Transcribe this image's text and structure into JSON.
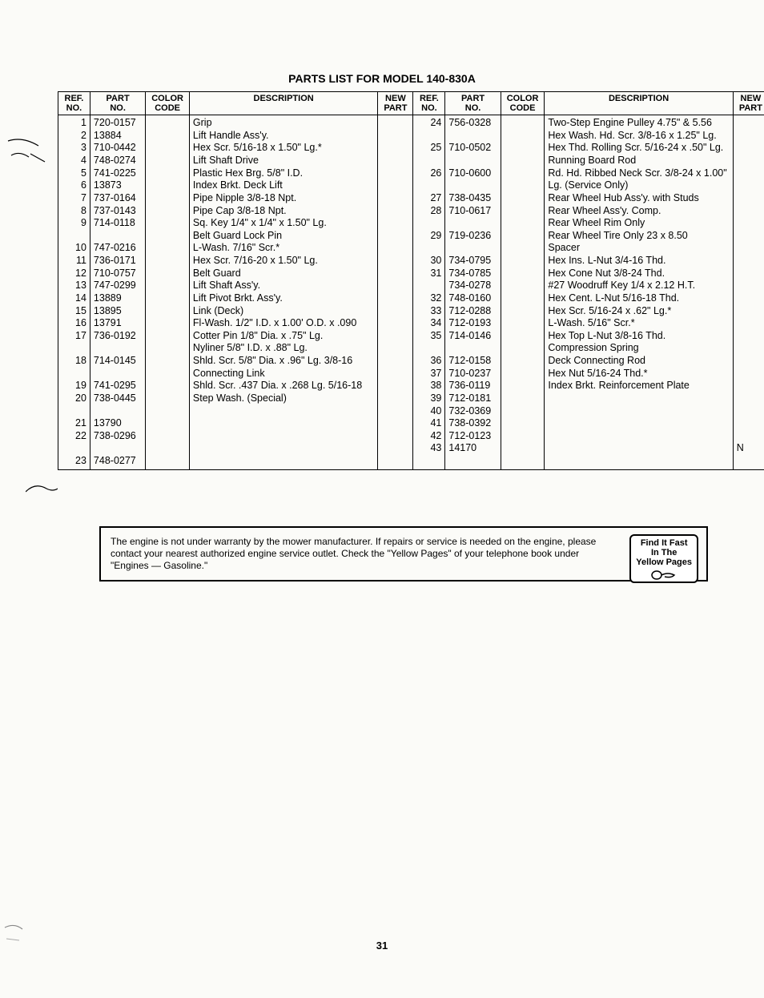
{
  "title": "PARTS LIST FOR MODEL 140-830A",
  "headers": {
    "ref": "REF.\nNO.",
    "part": "PART\nNO.",
    "color": "COLOR\nCODE",
    "desc": "DESCRIPTION",
    "newp": "NEW\nPART"
  },
  "left_rows": [
    {
      "ref": "1",
      "part": "720-0157",
      "desc": "Grip"
    },
    {
      "ref": "2",
      "part": "13884",
      "desc": "Lift Handle Ass'y."
    },
    {
      "ref": "3",
      "part": "710-0442",
      "desc": "Hex Scr. 5/16-18 x 1.50\" Lg.*"
    },
    {
      "ref": "4",
      "part": "748-0274",
      "desc": "Lift Shaft Drive"
    },
    {
      "ref": "5",
      "part": "741-0225",
      "desc": "Plastic Hex Brg. 5/8\" I.D."
    },
    {
      "ref": "6",
      "part": "13873",
      "desc": "Index Brkt. Deck Lift"
    },
    {
      "ref": "7",
      "part": "737-0164",
      "desc": "Pipe Nipple 3/8-18 Npt."
    },
    {
      "ref": "8",
      "part": "737-0143",
      "desc": "Pipe Cap 3/8-18 Npt."
    },
    {
      "ref": "9",
      "part": "714-0118",
      "desc": "Sq. Key 1/4\" x 1/4\" x 1.50\" Lg."
    },
    {
      "ref": "10",
      "part": "747-0216",
      "desc": "Belt Guard Lock Pin"
    },
    {
      "ref": "11",
      "part": "736-0171",
      "desc": "L-Wash. 7/16\" Scr.*"
    },
    {
      "ref": "12",
      "part": "710-0757",
      "desc": "Hex Scr. 7/16-20 x 1.50\" Lg."
    },
    {
      "ref": "13",
      "part": "747-0299",
      "desc": "Belt Guard"
    },
    {
      "ref": "14",
      "part": "13889",
      "desc": "Lift Shaft Ass'y."
    },
    {
      "ref": "15",
      "part": "13895",
      "desc": "Lift Pivot Brkt. Ass'y."
    },
    {
      "ref": "16",
      "part": "13791",
      "desc": "Link (Deck)"
    },
    {
      "ref": "17",
      "part": "736-0192",
      "desc": "Fl-Wash. 1/2\" I.D. x 1.00' O.D. x .090"
    },
    {
      "ref": "18",
      "part": "714-0145",
      "desc": "Cotter Pin 1/8\" Dia. x .75\" Lg."
    },
    {
      "ref": "19",
      "part": "741-0295",
      "desc": "Nyliner 5/8\" I.D. x .88\" Lg."
    },
    {
      "ref": "20",
      "part": "738-0445",
      "desc": "Shld. Scr. 5/8\" Dia. x .96\" Lg. 3/8-16"
    },
    {
      "ref": "21",
      "part": "13790",
      "desc": "Connecting Link"
    },
    {
      "ref": "22",
      "part": "738-0296",
      "desc": "Shld. Scr. .437 Dia. x .268 Lg. 5/16-18"
    },
    {
      "ref": "23",
      "part": "748-0277",
      "desc": "Step Wash. (Special)"
    }
  ],
  "right_rows": [
    {
      "ref": "24",
      "part": "756-0328",
      "desc": "Two-Step Engine Pulley 4.75\" & 5.56"
    },
    {
      "ref": "25",
      "part": "710-0502",
      "desc": "Hex Wash. Hd. Scr. 3/8-16 x 1.25\" Lg."
    },
    {
      "ref": "26",
      "part": "710-0600",
      "desc": "Hex Thd. Rolling Scr. 5/16-24 x .50\" Lg."
    },
    {
      "ref": "27",
      "part": "738-0435",
      "desc": "Running Board Rod"
    },
    {
      "ref": "28",
      "part": "710-0617",
      "desc": "Rd. Hd. Ribbed Neck Scr. 3/8-24 x 1.00\" Lg. (Service Only)"
    },
    {
      "ref": "29",
      "part": "719-0236",
      "desc": "Rear Wheel Hub Ass'y. with Studs"
    },
    {
      "ref": "30",
      "part": "734-0795",
      "desc": "Rear Wheel Ass'y. Comp."
    },
    {
      "ref": "31",
      "part": "734-0785",
      "desc": "Rear Wheel Rim Only"
    },
    {
      "ref": "",
      "part": "734-0278",
      "desc": "Rear Wheel Tire Only 23 x 8.50"
    },
    {
      "ref": "32",
      "part": "748-0160",
      "desc": "Spacer"
    },
    {
      "ref": "33",
      "part": "712-0288",
      "desc": "Hex Ins. L-Nut 3/4-16 Thd."
    },
    {
      "ref": "34",
      "part": "712-0193",
      "desc": "Hex Cone Nut 3/8-24 Thd."
    },
    {
      "ref": "35",
      "part": "714-0146",
      "desc": "#27 Woodruff Key 1/4 x 2.12 H.T."
    },
    {
      "ref": "36",
      "part": "712-0158",
      "desc": "Hex Cent. L-Nut 5/16-18 Thd."
    },
    {
      "ref": "37",
      "part": "710-0237",
      "desc": "Hex Scr. 5/16-24 x .62\" Lg.*"
    },
    {
      "ref": "38",
      "part": "736-0119",
      "desc": "L-Wash. 5/16\" Scr.*"
    },
    {
      "ref": "39",
      "part": "712-0181",
      "desc": "Hex Top L-Nut 3/8-16 Thd."
    },
    {
      "ref": "40",
      "part": "732-0369",
      "desc": "Compression Spring"
    },
    {
      "ref": "41",
      "part": "738-0392",
      "desc": "Deck Connecting Rod"
    },
    {
      "ref": "42",
      "part": "712-0123",
      "desc": "Hex Nut 5/16-24 Thd.*"
    },
    {
      "ref": "43",
      "part": "14170",
      "desc": "Index Brkt. Reinforcement Plate",
      "newp": "N"
    }
  ],
  "notice_text": "The engine is not under warranty by the mower manufacturer. If repairs or service is needed on the engine, please contact your nearest authorized engine service outlet. Check the \"Yellow Pages\" of your telephone book under \"Engines — Gasoline.\"",
  "yellow_l1": "Find It Fast",
  "yellow_l2": "In The",
  "yellow_l3": "Yellow Pages",
  "page_num": "31"
}
